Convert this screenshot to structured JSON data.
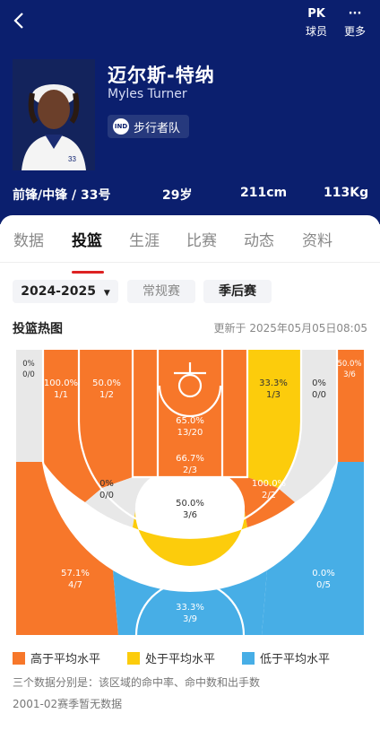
{
  "header": {
    "back_icon": "chevron-left-icon",
    "pk_label": "球员",
    "pk_icon_text": "PK",
    "more_label": "更多",
    "more_icon_text": "···"
  },
  "player": {
    "name_cn": "迈尔斯-特纳",
    "name_en": "Myles Turner",
    "team": "步行者队",
    "team_logo_text": "IND",
    "position_number": "前锋/中锋 / 33号",
    "age": "29岁",
    "height": "211cm",
    "weight": "113Kg"
  },
  "tabs": [
    "数据",
    "投篮",
    "生涯",
    "比赛",
    "动态",
    "资料"
  ],
  "active_tab": "投篮",
  "filters": {
    "season": "2024-2025",
    "regular": "常规赛",
    "playoffs": "季后赛",
    "selected": "季后赛"
  },
  "chart_title": "投篮热图",
  "updated": "更新于 2025年05月05日08:05",
  "colors": {
    "above": "#f7772a",
    "avg": "#fccc0c",
    "below": "#47aee6",
    "none": "#e8e8e8"
  },
  "chart_data": {
    "type": "heatmap",
    "zones": [
      {
        "zone": "left-corner-3",
        "pct": "0%",
        "made_att": "0/0",
        "level": "none"
      },
      {
        "zone": "left-baseline-2",
        "pct": "100.0%",
        "made_att": "1/1",
        "level": "above"
      },
      {
        "zone": "left-short-2",
        "pct": "50.0%",
        "made_att": "1/2",
        "level": "above"
      },
      {
        "zone": "restricted-area",
        "pct": "65.0%",
        "made_att": "13/20",
        "level": "above"
      },
      {
        "zone": "right-short-2",
        "pct": "33.3%",
        "made_att": "1/3",
        "level": "avg"
      },
      {
        "zone": "right-baseline-2",
        "pct": "0%",
        "made_att": "0/0",
        "level": "none"
      },
      {
        "zone": "right-corner-3",
        "pct": "50.0%",
        "made_att": "3/6",
        "level": "above"
      },
      {
        "zone": "paint-top",
        "pct": "66.7%",
        "made_att": "2/3",
        "level": "above"
      },
      {
        "zone": "left-elbow-2",
        "pct": "0%",
        "made_att": "0/0",
        "level": "none"
      },
      {
        "zone": "top-key-2",
        "pct": "50.0%",
        "made_att": "3/6",
        "level": "avg"
      },
      {
        "zone": "right-elbow-2",
        "pct": "100.0%",
        "made_att": "2/2",
        "level": "above"
      },
      {
        "zone": "left-wing-3",
        "pct": "57.1%",
        "made_att": "4/7",
        "level": "above"
      },
      {
        "zone": "top-3",
        "pct": "33.3%",
        "made_att": "3/9",
        "level": "below"
      },
      {
        "zone": "right-wing-3",
        "pct": "0.0%",
        "made_att": "0/5",
        "level": "below"
      }
    ]
  },
  "legend": {
    "above": "高于平均水平",
    "avg": "处于平均水平",
    "below": "低于平均水平"
  },
  "notes": {
    "explain": "三个数据分别是：该区域的命中率、命中数和出手数",
    "nodata": "2001-02赛季暂无数据"
  }
}
